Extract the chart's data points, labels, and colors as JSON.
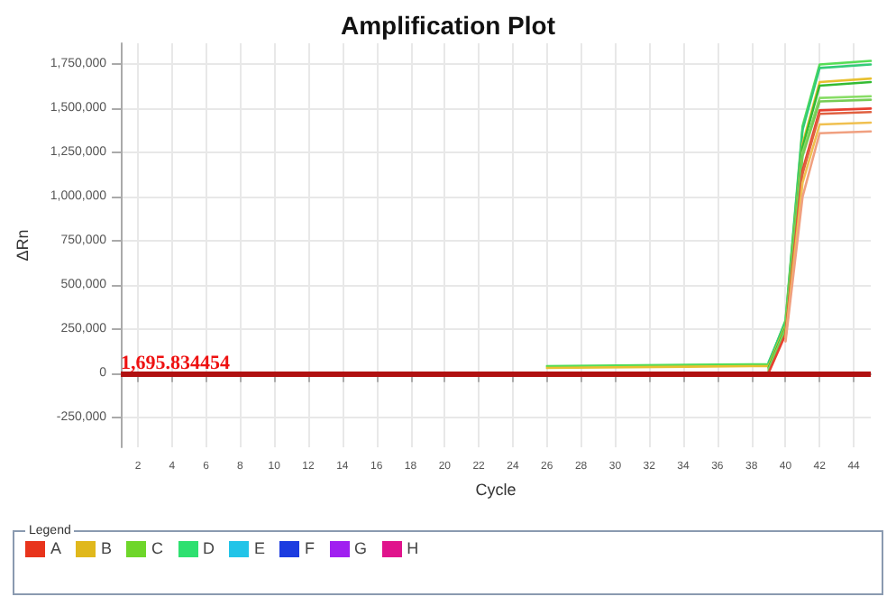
{
  "chart_data": [
    {
      "type": "line",
      "title": "Amplification Plot",
      "xlabel": "Cycle",
      "ylabel": "ΔRn",
      "x": [
        26,
        38,
        39,
        40,
        41,
        42,
        45
      ],
      "series": [
        {
          "color": "#55dd55",
          "values": [
            40000,
            50000,
            50000,
            300000,
            1400000,
            1750000,
            1770000
          ]
        },
        {
          "color": "#33cc77",
          "values": [
            null,
            null,
            60000,
            290000,
            1380000,
            1730000,
            1750000
          ]
        },
        {
          "color": "#e8c030",
          "values": [
            30000,
            40000,
            40000,
            270000,
            1300000,
            1650000,
            1670000
          ]
        },
        {
          "color": "#33bb33",
          "values": [
            null,
            null,
            30000,
            260000,
            1280000,
            1630000,
            1650000
          ]
        },
        {
          "color": "#88dd66",
          "values": [
            null,
            null,
            20000,
            250000,
            1250000,
            1560000,
            1570000
          ]
        },
        {
          "color": "#77cc55",
          "values": [
            null,
            null,
            10000,
            240000,
            1230000,
            1540000,
            1550000
          ]
        },
        {
          "color": "#e84030",
          "values": [
            null,
            null,
            0,
            220000,
            1150000,
            1490000,
            1500000
          ]
        },
        {
          "color": "#e06040",
          "values": [
            null,
            null,
            null,
            210000,
            1130000,
            1470000,
            1480000
          ]
        },
        {
          "color": "#f0c050",
          "values": [
            null,
            null,
            null,
            200000,
            1080000,
            1410000,
            1420000
          ]
        },
        {
          "color": "#f0a080",
          "values": [
            null,
            null,
            null,
            180000,
            1000000,
            1360000,
            1370000
          ]
        }
      ],
      "xlim": [
        1,
        45
      ],
      "xticks": [
        2,
        4,
        6,
        8,
        10,
        12,
        14,
        16,
        18,
        20,
        22,
        24,
        26,
        28,
        30,
        32,
        34,
        36,
        38,
        40,
        42,
        44
      ],
      "ylim": [
        -420000,
        1870000
      ],
      "yticks": [
        {
          "value": -250000,
          "label": "-250,000"
        },
        0,
        {
          "value": 250000,
          "label": "250,000"
        },
        {
          "value": 500000,
          "label": "500,000"
        },
        {
          "value": 750000,
          "label": "750,000"
        },
        {
          "value": 1000000,
          "label": "1,000,000"
        },
        {
          "value": 1250000,
          "label": "1,250,000"
        },
        {
          "value": 1500000,
          "label": "1,500,000"
        },
        {
          "value": 1750000,
          "label": "1,750,000"
        }
      ],
      "ref_lines": [
        {
          "axis": "y",
          "value": 1695.834454,
          "label": "1,695.834454",
          "color": "#b01010"
        }
      ],
      "grid": true,
      "marker": "none",
      "line_style": "solid"
    },
    {
      "type": "other",
      "title": "Legend",
      "categories": [
        "A",
        "B",
        "C",
        "D",
        "E",
        "F",
        "G",
        "H"
      ],
      "colors": [
        "#e8341c",
        "#e0b81c",
        "#6ed62a",
        "#2ee070",
        "#22c4e8",
        "#1c3ce0",
        "#a020f0",
        "#e0148c"
      ]
    }
  ]
}
